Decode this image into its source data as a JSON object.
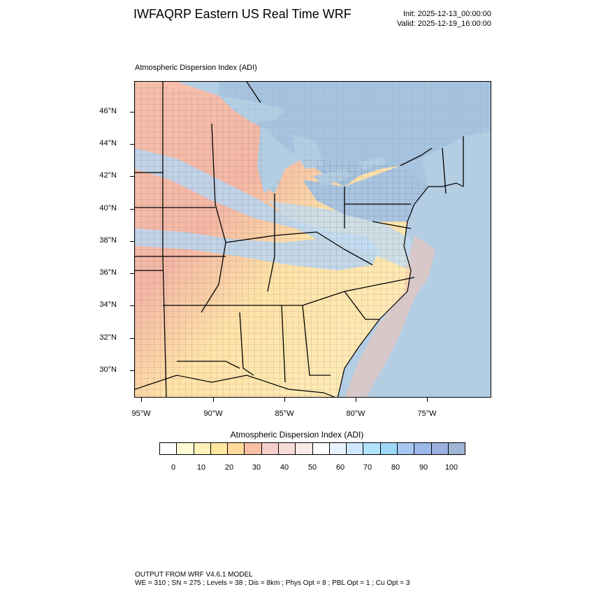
{
  "header": {
    "title": "IWFAQRP Eastern US Real Time WRF",
    "init": "Init: 2025-12-13_00:00:00",
    "valid": "Valid: 2025-12-19_16:00:00"
  },
  "plot": {
    "subtitle": "Atmospheric Dispersion Index   (ADI)",
    "lat_labels": [
      "46°N",
      "44°N",
      "42°N",
      "40°N",
      "38°N",
      "36°N",
      "34°N",
      "32°N",
      "30°N"
    ],
    "lon_labels": [
      "95°W",
      "90°W",
      "85°W",
      "80°W",
      "75°W"
    ],
    "colors": {
      "water": "#b3cde3",
      "land_low": "#ffe9a8",
      "land_mid": "#f6b9a2",
      "land_high": "#a9c9ea",
      "border": "#000000"
    }
  },
  "colorbar": {
    "title": "Atmospheric Dispersion Index  (ADI)",
    "labels": [
      "0",
      "10",
      "20",
      "30",
      "40",
      "50",
      "60",
      "70",
      "80",
      "90",
      "100"
    ],
    "colors": [
      "#ffffff",
      "#fffbd6",
      "#fff2b8",
      "#ffe7a0",
      "#ffd89a",
      "#f7bfa4",
      "#f4cfc9",
      "#f8dcd8",
      "#fbe9e7",
      "#ffffff",
      "#e8f2ff",
      "#cfe8ff",
      "#b3e3fb",
      "#9ed8f7",
      "#a7c7f0",
      "#9cb8e8",
      "#9ab0df",
      "#9fb7d6"
    ]
  },
  "footer": {
    "line1": "OUTPUT FROM WRF V4.6.1 MODEL",
    "line2": "WE = 310 ; SN = 275 ; Levels = 38 ; Dis = 8km ; Phys Opt = 8 ; PBL Opt = 1 ; Cu Opt = 3"
  }
}
